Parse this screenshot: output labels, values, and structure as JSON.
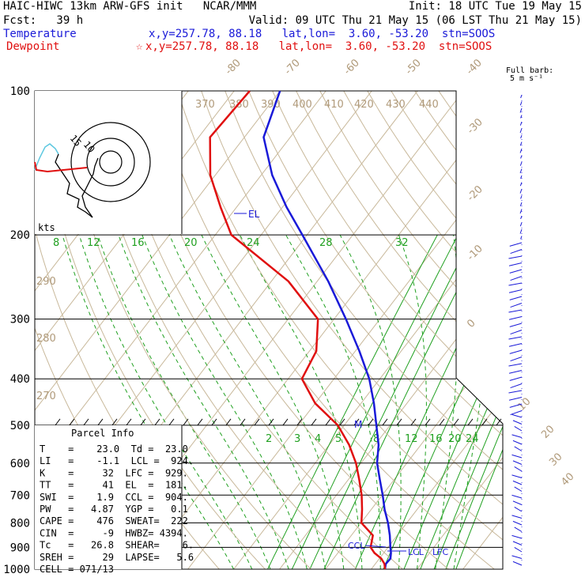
{
  "header": {
    "line1_left": "HAIC-HIWC 13km ARW-GFS init   NCAR/MMM",
    "line1_right": "Init: 18 UTC Tue 19 May 15",
    "line2_left": "Fcst:   39 h",
    "line2_right": "Valid: 09 UTC Thu 21 May 15 (06 LST Thu 21 May 15)",
    "temp_label": "Temperature",
    "temp_info": "x,y=257.78, 88.18   lat,lon=  3.60, -53.20  stn=SOOS",
    "dew_label": "Dewpoint",
    "dew_info": "x,y=257.78, 88.18   lat,lon=  3.60, -53.20  stn=SOOS",
    "barb_note1": "Full barb:",
    "barb_note2": "5 m s⁻¹"
  },
  "colors": {
    "temperature": "#1a1ad8",
    "dewpoint": "#e01010",
    "isotherm": "#b09a7a",
    "mixing_ratio": "#20a020"
  },
  "hodograph": {
    "ring_labels": [
      "15",
      "10"
    ],
    "kts": "kts"
  },
  "markers": {
    "el": "EL",
    "m": "M",
    "ccl": "CCL",
    "lcl": "LCL",
    "lfc": "LFC"
  },
  "parcel_info": {
    "title": "Parcel Info",
    "rows": [
      "T    =    23.0  Td =  23.0",
      "LI   =    -1.1  LCL =  924.",
      "K    =     32  LFC =  929.",
      "TT   =     41  EL  =  181.",
      "SWI  =    1.9  CCL =  904.",
      "PW   =   4.87  YGP =   0.1",
      "CAPE =    476  SWEAT=  222",
      "CIN  =     -9  HWBZ= 4394.",
      "Tc   =   26.8  SHEAR=    6.",
      "SREH =     29  LAPSE=   5.6",
      "CELL = 071/13"
    ]
  },
  "chart_data": {
    "type": "line",
    "title": "",
    "pressure_levels": [
      "100",
      "200",
      "300",
      "400",
      "500",
      "600",
      "700",
      "800",
      "900",
      "1000"
    ],
    "isotherm_labels": [
      "-80",
      "-70",
      "-60",
      "-50",
      "-40",
      "-30",
      "-20",
      "-10",
      "0",
      "10",
      "20",
      "30",
      "40"
    ],
    "theta_labels": [
      "370",
      "380",
      "390",
      "400",
      "410",
      "420",
      "430",
      "440",
      "290",
      "280",
      "270"
    ],
    "mixing_ratio_labels_upper": [
      "8",
      "12",
      "16",
      "20",
      "24",
      "28",
      "32"
    ],
    "mixing_ratio_labels_lower": [
      "2",
      "3",
      "4",
      "5",
      "8",
      "12",
      "16",
      "20",
      "24"
    ],
    "series": [
      {
        "name": "Temperature",
        "points": [
          [
            1000,
            23.0
          ],
          [
            975,
            22.3
          ],
          [
            950,
            22.4
          ],
          [
            925,
            21.6
          ],
          [
            900,
            20.5
          ],
          [
            850,
            18.4
          ],
          [
            800,
            15.9
          ],
          [
            750,
            12.9
          ],
          [
            700,
            10.1
          ],
          [
            650,
            6.9
          ],
          [
            600,
            3.5
          ],
          [
            550,
            0.8
          ],
          [
            500,
            -3.0
          ],
          [
            450,
            -7.2
          ],
          [
            400,
            -12.3
          ],
          [
            350,
            -19.1
          ],
          [
            300,
            -27.4
          ],
          [
            250,
            -37.6
          ],
          [
            200,
            -51.0
          ],
          [
            175,
            -59.1
          ],
          [
            150,
            -67.6
          ],
          [
            125,
            -75.8
          ],
          [
            100,
            -80.0
          ]
        ]
      },
      {
        "name": "Dewpoint",
        "points": [
          [
            1000,
            23.0
          ],
          [
            975,
            22.0
          ],
          [
            950,
            20.4
          ],
          [
            925,
            18.0
          ],
          [
            900,
            16.2
          ],
          [
            850,
            14.7
          ],
          [
            800,
            10.1
          ],
          [
            750,
            8.0
          ],
          [
            700,
            5.5
          ],
          [
            650,
            2.4
          ],
          [
            600,
            -1.1
          ],
          [
            550,
            -5.6
          ],
          [
            500,
            -11.4
          ],
          [
            450,
            -20.0
          ],
          [
            400,
            -27.0
          ],
          [
            350,
            -28.5
          ],
          [
            300,
            -33.5
          ],
          [
            250,
            -46.3
          ],
          [
            200,
            -66.5
          ],
          [
            175,
            -73.5
          ],
          [
            150,
            -81.1
          ],
          [
            125,
            -87.5
          ],
          [
            100,
            -86.6
          ]
        ]
      }
    ]
  }
}
